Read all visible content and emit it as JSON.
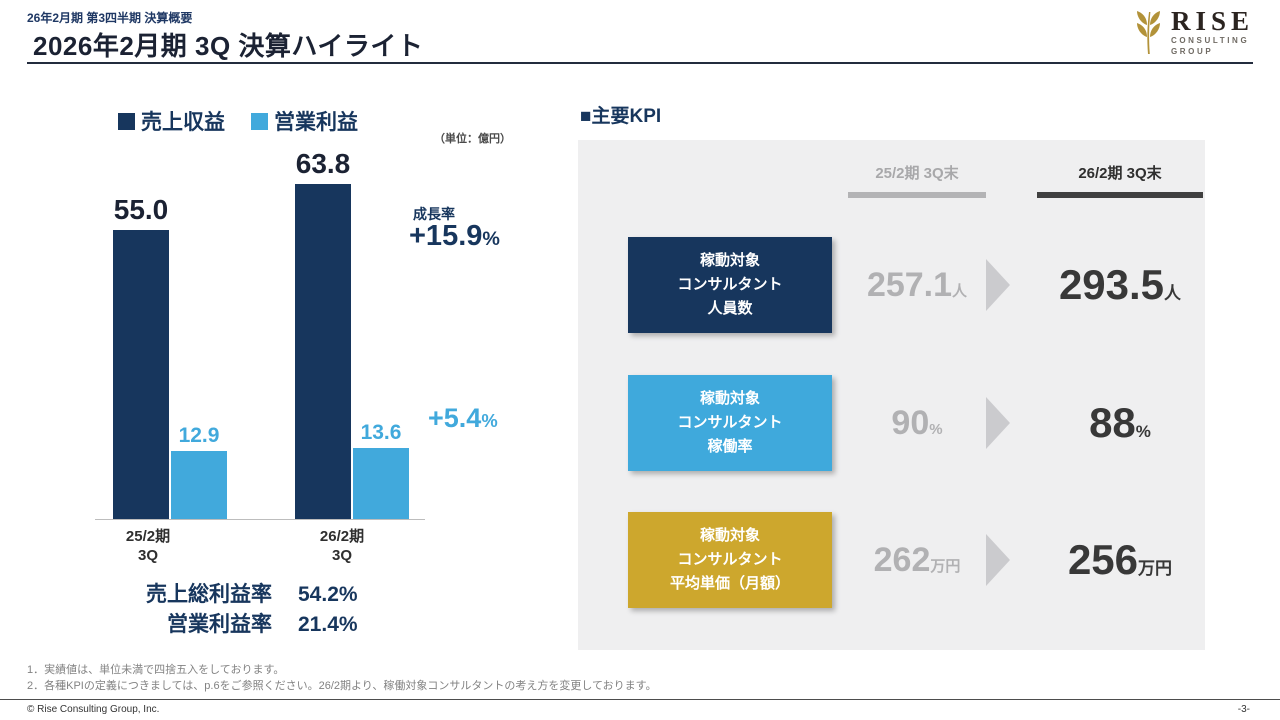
{
  "meta": {
    "eyebrow": "26年2月期 第3四半期 決算概要",
    "title": "2026年2月期 3Q 決算ハイライト",
    "copyright": "© Rise Consulting Group, Inc.",
    "page_number": "-3-"
  },
  "logo": {
    "name": "RISE",
    "sub1": "CONSULTING",
    "sub2": "GROUP",
    "icon_color": "#b29239"
  },
  "chart": {
    "legend": [
      {
        "label": "売上収益",
        "color": "#17365d"
      },
      {
        "label": "営業利益",
        "color": "#41a9dc"
      }
    ],
    "unit_note": "（単位：億円）",
    "revenue_labels": [
      "55.0",
      "63.8"
    ],
    "profit_labels": [
      "12.9",
      "13.6"
    ],
    "x_labels": [
      {
        "line1": "25/2期",
        "line2": "3Q"
      },
      {
        "line1": "26/2期",
        "line2": "3Q"
      }
    ],
    "growth_label": "成長率",
    "revenue_growth": "+15.9",
    "profit_growth": "+5.4",
    "growth_unit": "%",
    "ratios": [
      {
        "label": "売上総利益率",
        "value": "54.2%"
      },
      {
        "label": "営業利益率",
        "value": "21.4%"
      }
    ]
  },
  "kpi": {
    "heading": "■主要KPI",
    "columns": [
      {
        "label": "25/2期 3Q末",
        "color": "#b3b3b5",
        "text_color": "#a8a8aa"
      },
      {
        "label": "26/2期 3Q末",
        "color": "#404040",
        "text_color": "#2f2f2f"
      }
    ],
    "rows": [
      {
        "label_line1": "稼動対象",
        "label_line2": "コンサルタント",
        "label_line3": "人員数",
        "color": "#17365d",
        "prev_value": "257.1",
        "prev_unit": "人",
        "curr_value": "293.5",
        "curr_unit": "人"
      },
      {
        "label_line1": "稼動対象",
        "label_line2": "コンサルタント",
        "label_line3": "稼働率",
        "color": "#3fa9dc",
        "prev_value": "90",
        "prev_unit": "%",
        "curr_value": "88",
        "curr_unit": "%"
      },
      {
        "label_line1": "稼動対象",
        "label_line2": "コンサルタント",
        "label_line3": "平均単価（月額）",
        "color": "#cda72d",
        "prev_value": "262",
        "prev_unit": "万円",
        "curr_value": "256",
        "curr_unit": "万円"
      }
    ]
  },
  "footnotes": [
    "1．実績値は、単位未満で四捨五入をしております。",
    "2．各種KPIの定義につきましては、p.6をご参照ください。26/2期より、稼働対象コンサルタントの考え方を変更しております。"
  ],
  "chart_data": [
    {
      "type": "bar",
      "title": "売上収益・営業利益",
      "subtitle": "（単位：億円）",
      "categories": [
        "25/2期 3Q",
        "26/2期 3Q"
      ],
      "series": [
        {
          "name": "売上収益",
          "values": [
            55.0,
            63.8
          ],
          "color": "#17365d",
          "growth": "+15.9%"
        },
        {
          "name": "営業利益",
          "values": [
            12.9,
            13.6
          ],
          "color": "#41a9dc",
          "growth": "+5.4%"
        }
      ],
      "unit": "億円",
      "ylim": [
        0,
        70
      ],
      "grid": false,
      "legend_position": "top",
      "annotations": [
        {
          "text": "成長率 +15.9%",
          "series": "売上収益"
        },
        {
          "text": "+5.4%",
          "series": "営業利益"
        },
        {
          "text": "売上総利益率 54.2%"
        },
        {
          "text": "営業利益率 21.4%"
        }
      ]
    },
    {
      "type": "table",
      "title": "主要KPI",
      "columns": [
        "KPI",
        "25/2期 3Q末",
        "26/2期 3Q末"
      ],
      "rows": [
        [
          "稼動対象コンサルタント人員数",
          "257.1人",
          "293.5人"
        ],
        [
          "稼動対象コンサルタント稼働率",
          "90%",
          "88%"
        ],
        [
          "稼動対象コンサルタント平均単価（月額）",
          "262万円",
          "256万円"
        ]
      ]
    }
  ]
}
